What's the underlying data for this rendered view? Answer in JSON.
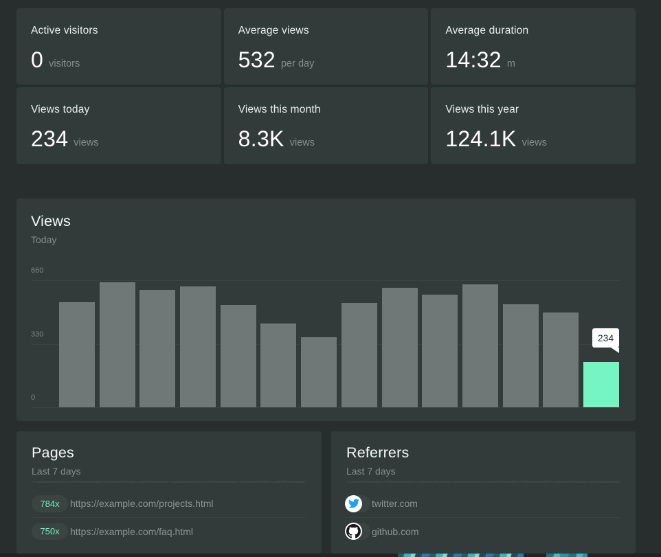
{
  "accent_color": "#74f5c3",
  "twitter_blue": "#1da1f2",
  "stats": [
    {
      "label": "Active visitors",
      "value": "0",
      "unit": "visitors"
    },
    {
      "label": "Average views",
      "value": "532",
      "unit": "per day"
    },
    {
      "label": "Average duration",
      "value": "14:32",
      "unit": "m"
    },
    {
      "label": "Views today",
      "value": "234",
      "unit": "views"
    },
    {
      "label": "Views this month",
      "value": "8.3K",
      "unit": "views"
    },
    {
      "label": "Views this year",
      "value": "124.1K",
      "unit": "views"
    }
  ],
  "chart": {
    "title": "Views",
    "subtitle": "Today",
    "tooltip": "234"
  },
  "chart_data": {
    "type": "bar",
    "title": "Views",
    "subtitle": "Today",
    "values": [
      545,
      648,
      609,
      628,
      532,
      434,
      363,
      542,
      620,
      586,
      639,
      535,
      491,
      234
    ],
    "active_index": 13,
    "active_value_label": "234",
    "y_ticks": [
      660,
      330,
      0
    ],
    "ylim": [
      0,
      660
    ],
    "bar_color": "#707877",
    "active_bar_color": "#74f5c3",
    "grid": "horizontal"
  },
  "pages": {
    "title": "Pages",
    "subtitle": "Last 7 days",
    "rows": [
      {
        "count": "784x",
        "url": "https://example.com/projects.html"
      },
      {
        "count": "750x",
        "url": "https://example.com/faq.html"
      }
    ]
  },
  "referrers": {
    "title": "Referrers",
    "subtitle": "Last 7 days",
    "rows": [
      {
        "icon": "twitter-icon",
        "domain": "twitter.com"
      },
      {
        "icon": "github-icon",
        "domain": "github.com"
      }
    ]
  }
}
